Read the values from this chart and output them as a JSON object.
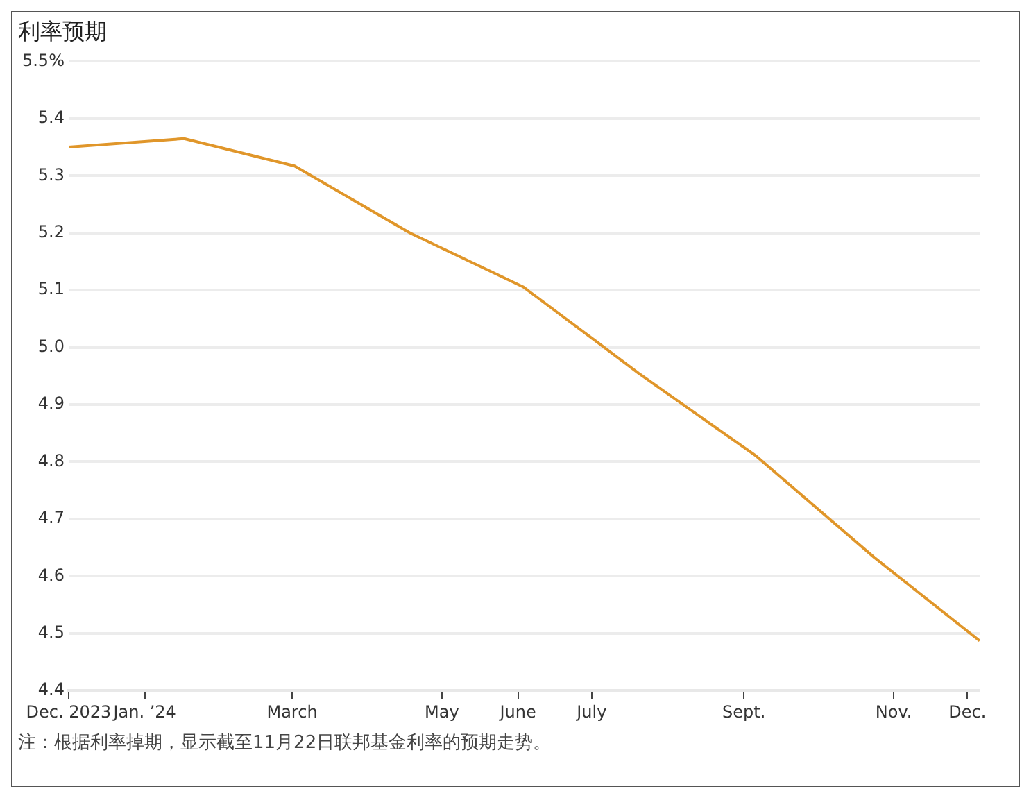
{
  "chart_data": {
    "type": "line",
    "title": "利率预期",
    "annotations": [
      "注：根据利率掉期，显示截至11月22日联邦基金利率的预期走势。"
    ],
    "x": [
      "2023-12-01",
      "2024-01-17",
      "2024-03-02",
      "2024-04-18",
      "2024-06-03",
      "2024-07-03",
      "2024-07-20",
      "2024-09-06",
      "2024-10-24",
      "2024-12-06"
    ],
    "series": [
      {
        "color": "#e0962a",
        "values": [
          5.35,
          5.365,
          5.317,
          5.2,
          5.106,
          5.01,
          4.955,
          4.81,
          4.633,
          4.487
        ]
      }
    ],
    "xlim": [
      "2023-12-01",
      "2024-12-06"
    ],
    "xticks": [
      {
        "value": "2023-12-01",
        "label": "Dec. 2023"
      },
      {
        "value": "2024-01-01",
        "label": "Jan. ’24"
      },
      {
        "value": "2024-03-01",
        "label": "March"
      },
      {
        "value": "2024-05-01",
        "label": "May"
      },
      {
        "value": "2024-06-01",
        "label": "June"
      },
      {
        "value": "2024-07-01",
        "label": "July"
      },
      {
        "value": "2024-09-01",
        "label": "Sept."
      },
      {
        "value": "2024-11-01",
        "label": "Nov."
      },
      {
        "value": "2024-12-01",
        "label": "Dec."
      }
    ],
    "ylim": [
      4.4,
      5.5
    ],
    "yticks": [
      4.4,
      4.5,
      4.6,
      4.7,
      4.8,
      4.9,
      {
        "value": 5.0,
        "label": "5.0"
      },
      5.1,
      5.2,
      5.3,
      5.4,
      {
        "value": 5.5,
        "label": "5.5%"
      }
    ],
    "grid": "y",
    "marker": "none",
    "line_style": "solid",
    "legend": false
  }
}
